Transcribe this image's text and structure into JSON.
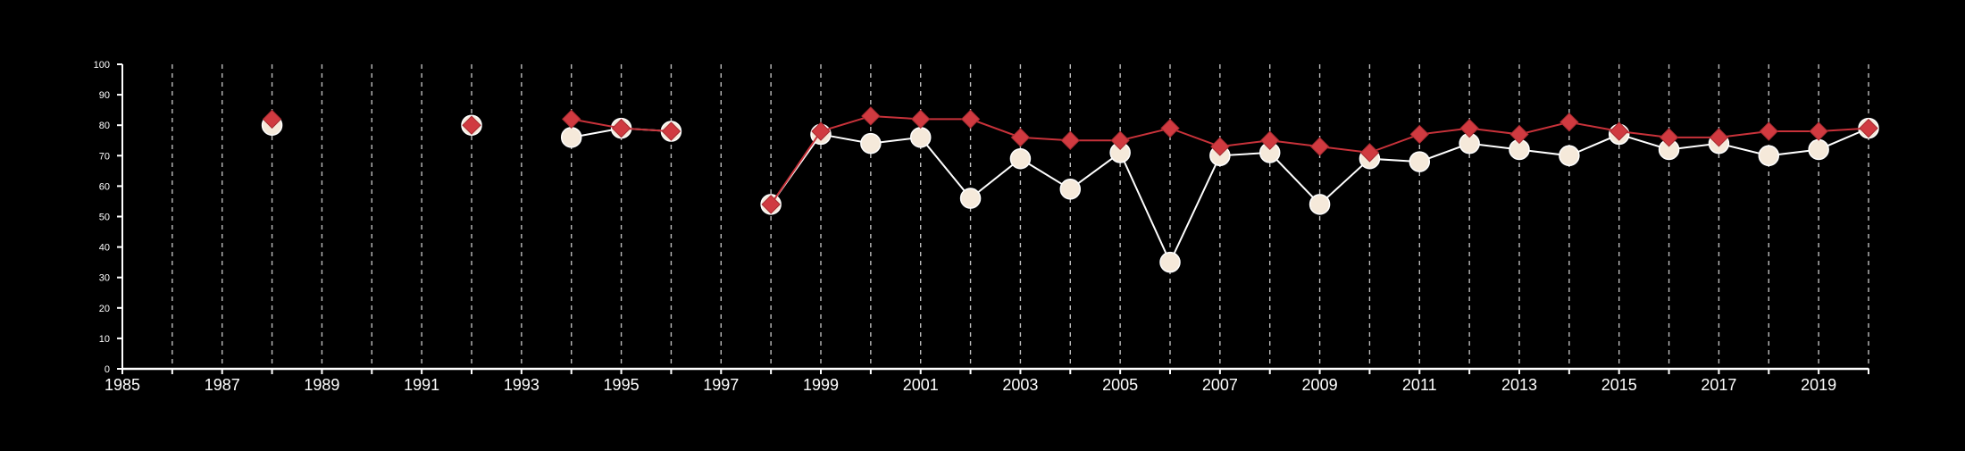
{
  "chart_data": {
    "type": "line",
    "title": "",
    "xlabel": "",
    "ylabel": "",
    "xlim": [
      1985,
      2020
    ],
    "ylim": [
      0,
      100
    ],
    "x_ticks": [
      1985,
      1987,
      1989,
      1991,
      1993,
      1995,
      1997,
      1999,
      2001,
      2003,
      2005,
      2007,
      2009,
      2011,
      2013,
      2015,
      2017,
      2019
    ],
    "x_tick_labels": [
      "1985",
      "1987",
      "1989",
      "1991",
      "1993",
      "1995",
      "1997",
      "1999",
      "2001",
      "2003",
      "2005",
      "2007",
      "2009",
      "2011",
      "2013",
      "2015",
      "2017",
      "2019"
    ],
    "y_ticks": [
      0,
      10,
      20,
      30,
      40,
      50,
      60,
      70,
      80,
      90,
      100
    ],
    "y_tick_labels": [
      "0",
      "10",
      "20",
      "30",
      "40",
      "50",
      "60",
      "70",
      "80",
      "90",
      "100"
    ],
    "vertical_gridlines": [
      1986,
      1987,
      1988,
      1989,
      1990,
      1991,
      1992,
      1993,
      1994,
      1995,
      1996,
      1997,
      1998,
      1999,
      2000,
      2001,
      2002,
      2003,
      2004,
      2005,
      2006,
      2007,
      2008,
      2009,
      2010,
      2011,
      2012,
      2013,
      2014,
      2015,
      2016,
      2017,
      2018,
      2019,
      2020
    ],
    "grid": "vertical dashed",
    "background": "#000000",
    "series": [
      {
        "marker": "circle",
        "color": "#ffffff",
        "fill": "#f5e9da",
        "points": [
          [
            1988,
            80
          ],
          [
            1992,
            80
          ],
          [
            1994,
            76
          ],
          [
            1995,
            79
          ],
          [
            1996,
            78
          ],
          [
            1998,
            54
          ],
          [
            1999,
            77
          ],
          [
            2000,
            74
          ],
          [
            2001,
            76
          ],
          [
            2002,
            56
          ],
          [
            2003,
            69
          ],
          [
            2004,
            59
          ],
          [
            2005,
            71
          ],
          [
            2006,
            35
          ],
          [
            2007,
            70
          ],
          [
            2008,
            71
          ],
          [
            2009,
            54
          ],
          [
            2010,
            69
          ],
          [
            2011,
            68
          ],
          [
            2012,
            74
          ],
          [
            2013,
            72
          ],
          [
            2014,
            70
          ],
          [
            2015,
            77
          ],
          [
            2016,
            72
          ],
          [
            2017,
            74
          ],
          [
            2018,
            70
          ],
          [
            2019,
            72
          ],
          [
            2020,
            79
          ]
        ]
      },
      {
        "marker": "diamond",
        "color": "#c8323a",
        "fill": "#d03a40",
        "points": [
          [
            1988,
            82
          ],
          [
            1992,
            80
          ],
          [
            1994,
            82
          ],
          [
            1995,
            79
          ],
          [
            1996,
            78
          ],
          [
            1998,
            54
          ],
          [
            1999,
            78
          ],
          [
            2000,
            83
          ],
          [
            2001,
            82
          ],
          [
            2002,
            82
          ],
          [
            2003,
            76
          ],
          [
            2004,
            75
          ],
          [
            2005,
            75
          ],
          [
            2006,
            79
          ],
          [
            2007,
            73
          ],
          [
            2008,
            75
          ],
          [
            2009,
            73
          ],
          [
            2010,
            71
          ],
          [
            2011,
            77
          ],
          [
            2012,
            79
          ],
          [
            2013,
            77
          ],
          [
            2014,
            81
          ],
          [
            2015,
            78
          ],
          [
            2016,
            76
          ],
          [
            2017,
            76
          ],
          [
            2018,
            78
          ],
          [
            2019,
            78
          ],
          [
            2020,
            79
          ]
        ]
      }
    ]
  }
}
